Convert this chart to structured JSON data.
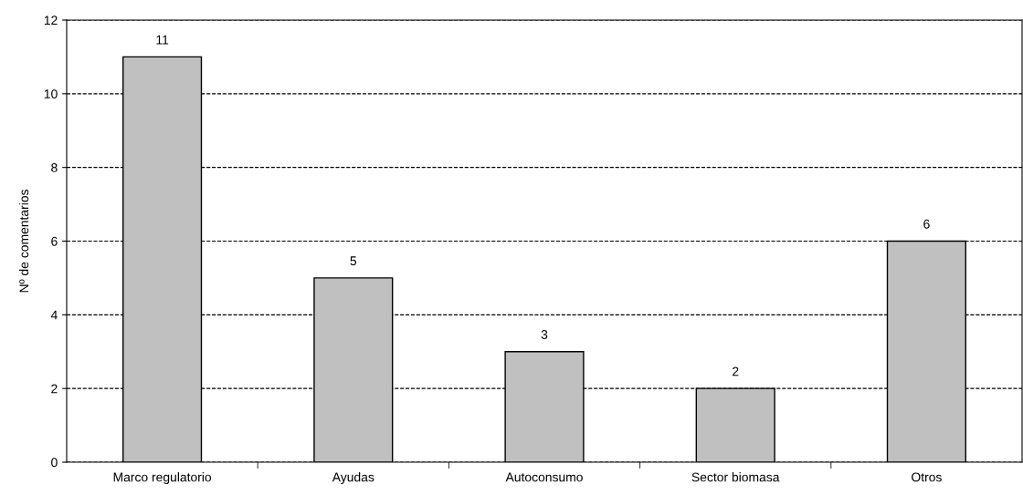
{
  "chart_data": {
    "type": "bar",
    "ylabel": "Nº de comentarios",
    "categories": [
      "Marco regulatorio",
      "Ayudas",
      "Autoconsumo",
      "Sector biomasa",
      "Otros"
    ],
    "values": [
      11,
      5,
      3,
      2,
      6
    ],
    "color": "#c0c0c0",
    "data_labels": true,
    "ylim": [
      0,
      12
    ],
    "yticks": [
      0,
      2,
      4,
      6,
      8,
      10,
      12
    ],
    "grid": "y",
    "line_style": "dashed"
  }
}
